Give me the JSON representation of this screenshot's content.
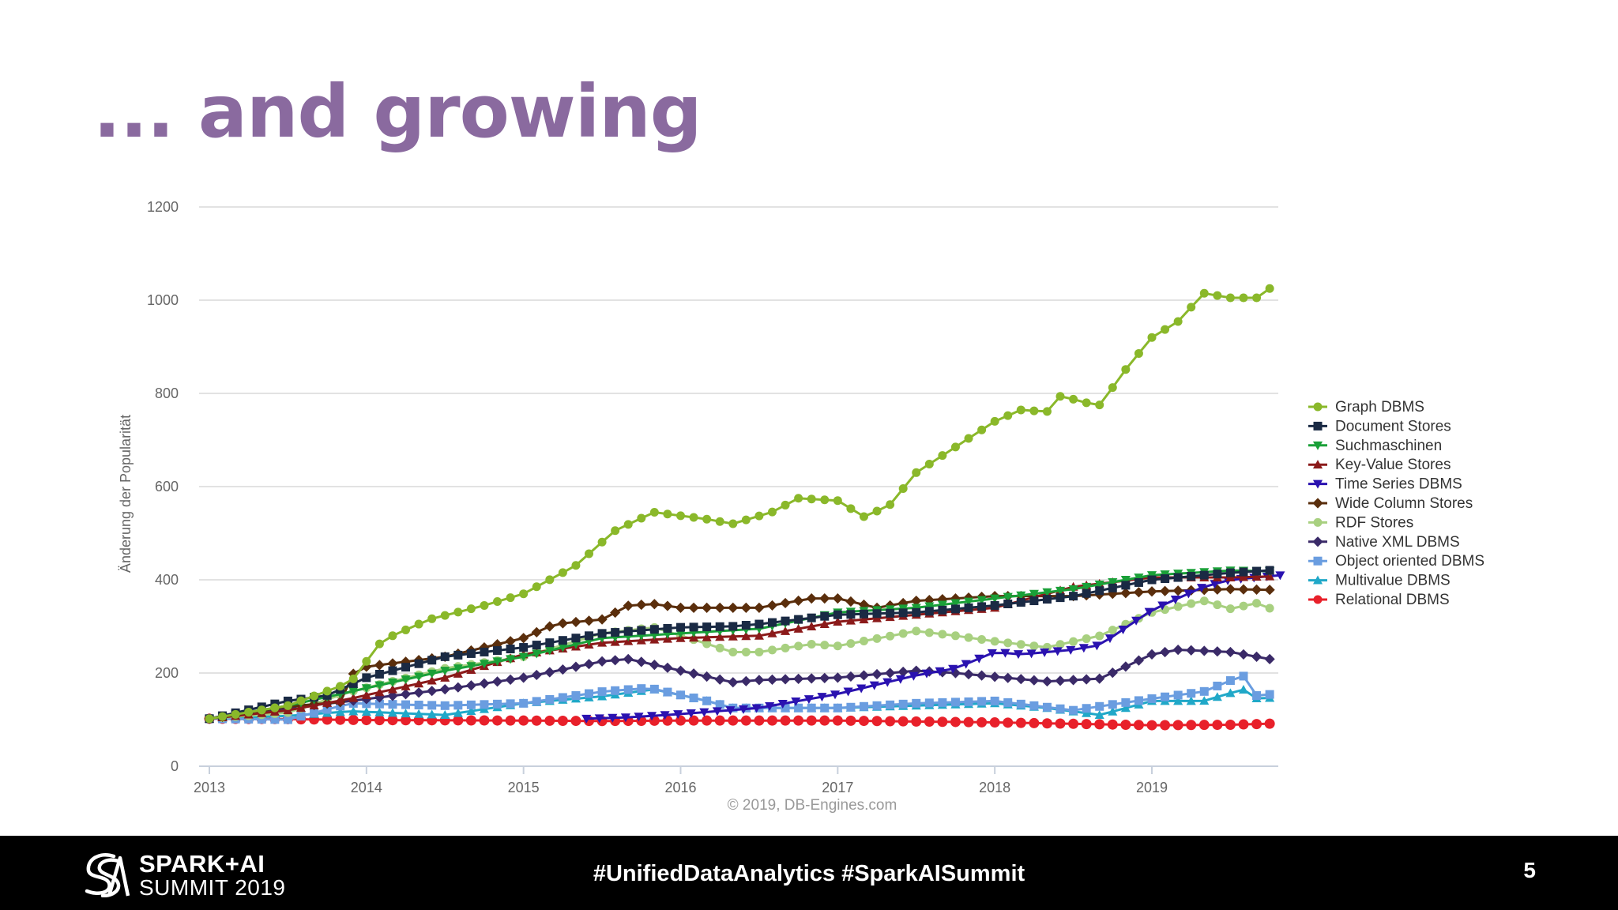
{
  "slide": {
    "title": "... and growing",
    "page_number": "5",
    "footer": {
      "logo_line1": "SPARK+AI",
      "logo_line2": "SUMMIT 2019",
      "hashtags": "#UnifiedDataAnalytics #SparkAISummit"
    }
  },
  "chart_data": {
    "type": "line",
    "title": "",
    "xlabel": "",
    "ylabel": "Änderung der Popularität",
    "credit": "© 2019, DB-Engines.com",
    "x_range": [
      2013,
      2019.83
    ],
    "ylim": [
      0,
      1200
    ],
    "y_ticks": [
      0,
      200,
      400,
      600,
      800,
      1000,
      1200
    ],
    "x_ticks": [
      "2013",
      "2014",
      "2015",
      "2016",
      "2017",
      "2018",
      "2019"
    ],
    "grid": true,
    "legend_position": "right",
    "series": [
      {
        "name": "Graph DBMS",
        "color": "#8ab82a",
        "marker": "circle",
        "points": [
          [
            2013,
            102
          ],
          [
            2013.5,
            130
          ],
          [
            2013.9,
            180
          ],
          [
            2014.1,
            270
          ],
          [
            2014.4,
            315
          ],
          [
            2014.75,
            345
          ],
          [
            2015,
            370
          ],
          [
            2015.33,
            430
          ],
          [
            2015.58,
            505
          ],
          [
            2015.83,
            545
          ],
          [
            2016.17,
            530
          ],
          [
            2016.33,
            520
          ],
          [
            2016.58,
            545
          ],
          [
            2016.75,
            575
          ],
          [
            2017,
            570
          ],
          [
            2017.17,
            535
          ],
          [
            2017.33,
            560
          ],
          [
            2017.5,
            630
          ],
          [
            2017.75,
            685
          ],
          [
            2018,
            740
          ],
          [
            2018.17,
            765
          ],
          [
            2018.33,
            760
          ],
          [
            2018.42,
            795
          ],
          [
            2018.58,
            780
          ],
          [
            2018.67,
            775
          ],
          [
            2018.83,
            850
          ],
          [
            2019,
            920
          ],
          [
            2019.17,
            955
          ],
          [
            2019.33,
            1015
          ],
          [
            2019.5,
            1005
          ],
          [
            2019.67,
            1005
          ],
          [
            2019.75,
            1025
          ]
        ]
      },
      {
        "name": "Document Stores",
        "color": "#1a2a44",
        "marker": "square",
        "points": [
          [
            2013,
            102
          ],
          [
            2013.5,
            140
          ],
          [
            2013.75,
            152
          ],
          [
            2014,
            190
          ],
          [
            2014.5,
            235
          ],
          [
            2015,
            255
          ],
          [
            2015.5,
            285
          ],
          [
            2016,
            298
          ],
          [
            2016.33,
            300
          ],
          [
            2016.5,
            305
          ],
          [
            2017,
            325
          ],
          [
            2017.5,
            330
          ],
          [
            2018,
            345
          ],
          [
            2018.5,
            365
          ],
          [
            2019,
            400
          ],
          [
            2019.5,
            415
          ],
          [
            2019.83,
            422
          ]
        ]
      },
      {
        "name": "Suchmaschinen",
        "color": "#1aa038",
        "marker": "triangle-down",
        "points": [
          [
            2013,
            102
          ],
          [
            2013.5,
            130
          ],
          [
            2013.9,
            160
          ],
          [
            2014.5,
            205
          ],
          [
            2015,
            235
          ],
          [
            2015.5,
            275
          ],
          [
            2016,
            285
          ],
          [
            2016.5,
            295
          ],
          [
            2017,
            330
          ],
          [
            2017.5,
            340
          ],
          [
            2018,
            360
          ],
          [
            2018.5,
            380
          ],
          [
            2019,
            410
          ],
          [
            2019.5,
            420
          ],
          [
            2019.83,
            418
          ]
        ]
      },
      {
        "name": "Key-Value Stores",
        "color": "#8b1a1a",
        "marker": "triangle-up",
        "points": [
          [
            2013,
            102
          ],
          [
            2013.5,
            120
          ],
          [
            2013.9,
            145
          ],
          [
            2014.5,
            190
          ],
          [
            2015,
            240
          ],
          [
            2015.5,
            265
          ],
          [
            2016,
            275
          ],
          [
            2016.5,
            280
          ],
          [
            2017,
            310
          ],
          [
            2017.5,
            325
          ],
          [
            2018,
            340
          ],
          [
            2018.5,
            385
          ],
          [
            2019,
            405
          ],
          [
            2019.5,
            405
          ],
          [
            2019.83,
            408
          ]
        ]
      },
      {
        "name": "Time Series DBMS",
        "color": "#2a12b0",
        "marker": "triangle-down",
        "points": [
          [
            2015.4,
            102
          ],
          [
            2015.67,
            105
          ],
          [
            2016,
            112
          ],
          [
            2016.5,
            125
          ],
          [
            2017,
            155
          ],
          [
            2017.5,
            195
          ],
          [
            2017.75,
            210
          ],
          [
            2018,
            245
          ],
          [
            2018.17,
            240
          ],
          [
            2018.5,
            250
          ],
          [
            2018.67,
            260
          ],
          [
            2019,
            335
          ],
          [
            2019.33,
            385
          ],
          [
            2019.5,
            400
          ],
          [
            2019.83,
            410
          ]
        ]
      },
      {
        "name": "Wide Column Stores",
        "color": "#5a2e0c",
        "marker": "diamond",
        "points": [
          [
            2013,
            102
          ],
          [
            2013.5,
            128
          ],
          [
            2013.9,
            140
          ],
          [
            2013.92,
            210
          ],
          [
            2014.5,
            235
          ],
          [
            2015,
            275
          ],
          [
            2015.2,
            305
          ],
          [
            2015.5,
            315
          ],
          [
            2015.67,
            345
          ],
          [
            2015.83,
            348
          ],
          [
            2016,
            340
          ],
          [
            2016.5,
            340
          ],
          [
            2016.83,
            360
          ],
          [
            2017,
            360
          ],
          [
            2017.25,
            340
          ],
          [
            2017.5,
            355
          ],
          [
            2018,
            365
          ],
          [
            2018.5,
            365
          ],
          [
            2019,
            375
          ],
          [
            2019.5,
            380
          ],
          [
            2019.83,
            378
          ]
        ]
      },
      {
        "name": "RDF Stores",
        "color": "#a8d080",
        "marker": "circle",
        "points": [
          [
            2013,
            102
          ],
          [
            2013.5,
            115
          ],
          [
            2013.9,
            160
          ],
          [
            2014.5,
            210
          ],
          [
            2015,
            235
          ],
          [
            2015.5,
            285
          ],
          [
            2015.83,
            298
          ],
          [
            2016.1,
            270
          ],
          [
            2016.33,
            245
          ],
          [
            2016.5,
            245
          ],
          [
            2016.83,
            262
          ],
          [
            2017,
            258
          ],
          [
            2017.5,
            290
          ],
          [
            2017.75,
            280
          ],
          [
            2018,
            268
          ],
          [
            2018.33,
            255
          ],
          [
            2018.67,
            280
          ],
          [
            2019,
            330
          ],
          [
            2019.33,
            355
          ],
          [
            2019.5,
            338
          ],
          [
            2019.67,
            350
          ],
          [
            2019.83,
            328
          ]
        ]
      },
      {
        "name": "Native XML DBMS",
        "color": "#3a2a68",
        "marker": "diamond",
        "points": [
          [
            2013,
            102
          ],
          [
            2013.5,
            125
          ],
          [
            2013.9,
            140
          ],
          [
            2014.5,
            165
          ],
          [
            2015,
            190
          ],
          [
            2015.5,
            225
          ],
          [
            2015.67,
            230
          ],
          [
            2016,
            205
          ],
          [
            2016.33,
            180
          ],
          [
            2016.5,
            185
          ],
          [
            2017,
            190
          ],
          [
            2017.5,
            205
          ],
          [
            2017.75,
            200
          ],
          [
            2018,
            192
          ],
          [
            2018.33,
            182
          ],
          [
            2018.67,
            188
          ],
          [
            2019,
            240
          ],
          [
            2019.17,
            250
          ],
          [
            2019.5,
            245
          ],
          [
            2019.83,
            225
          ]
        ]
      },
      {
        "name": "Object oriented DBMS",
        "color": "#6a9de0",
        "marker": "square",
        "points": [
          [
            2013,
            102
          ],
          [
            2013.5,
            100
          ],
          [
            2013.9,
            135
          ],
          [
            2014.5,
            130
          ],
          [
            2015,
            135
          ],
          [
            2015.5,
            160
          ],
          [
            2015.8,
            168
          ],
          [
            2016.17,
            140
          ],
          [
            2016.33,
            125
          ],
          [
            2017,
            125
          ],
          [
            2017.5,
            135
          ],
          [
            2018,
            140
          ],
          [
            2018.5,
            120
          ],
          [
            2019,
            145
          ],
          [
            2019.33,
            160
          ],
          [
            2019.58,
            195
          ],
          [
            2019.67,
            150
          ],
          [
            2019.83,
            158
          ]
        ]
      },
      {
        "name": "Multivalue DBMS",
        "color": "#20a8c8",
        "marker": "triangle-up",
        "points": [
          [
            2013,
            102
          ],
          [
            2013.5,
            108
          ],
          [
            2013.9,
            118
          ],
          [
            2014.5,
            110
          ],
          [
            2015,
            135
          ],
          [
            2015.5,
            150
          ],
          [
            2015.83,
            165
          ],
          [
            2016.17,
            140
          ],
          [
            2016.33,
            125
          ],
          [
            2017,
            125
          ],
          [
            2017.5,
            130
          ],
          [
            2018,
            135
          ],
          [
            2018.33,
            125
          ],
          [
            2018.67,
            110
          ],
          [
            2019,
            140
          ],
          [
            2019.33,
            140
          ],
          [
            2019.58,
            165
          ],
          [
            2019.67,
            145
          ],
          [
            2019.83,
            148
          ]
        ]
      },
      {
        "name": "Relational DBMS",
        "color": "#e8202a",
        "marker": "circle",
        "points": [
          [
            2013,
            102
          ],
          [
            2013.5,
            101
          ],
          [
            2014,
            99
          ],
          [
            2015,
            98
          ],
          [
            2015.5,
            97
          ],
          [
            2016,
            98
          ],
          [
            2016.5,
            98
          ],
          [
            2017,
            98
          ],
          [
            2017.5,
            96
          ],
          [
            2018,
            94
          ],
          [
            2018.5,
            91
          ],
          [
            2019,
            88
          ],
          [
            2019.5,
            89
          ],
          [
            2019.83,
            92
          ]
        ]
      }
    ]
  }
}
